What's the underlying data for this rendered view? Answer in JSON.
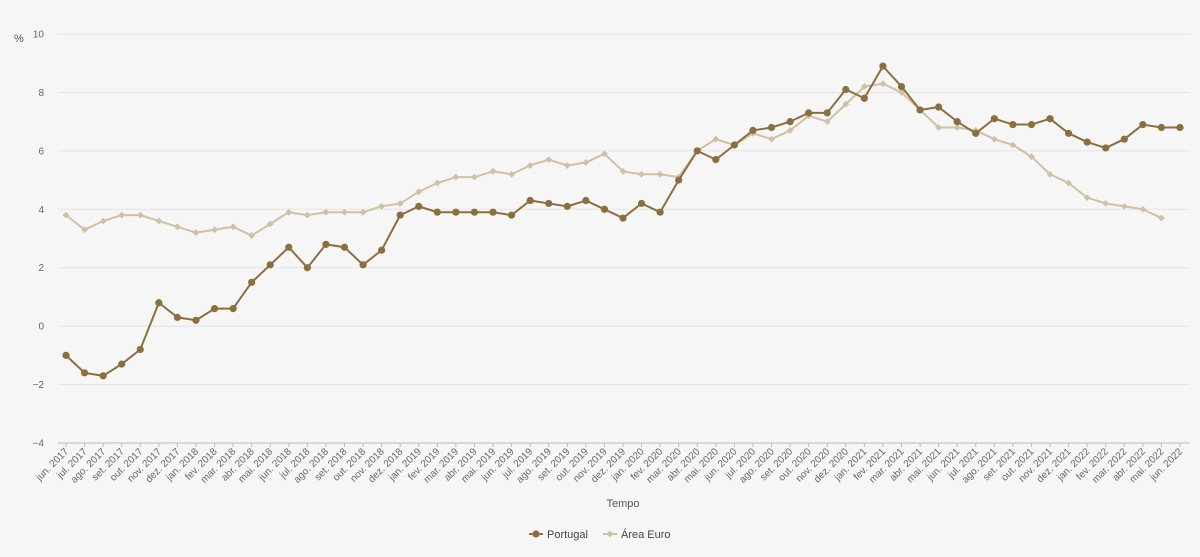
{
  "chart_data": {
    "type": "line",
    "title": "",
    "xlabel": "Tempo",
    "ylabel": "%",
    "ylim": [
      -4,
      10
    ],
    "yticks": [
      -4,
      -2,
      0,
      2,
      4,
      6,
      8,
      10
    ],
    "ytick_labels": [
      "−4",
      "−2",
      "0",
      "2",
      "4",
      "6",
      "8",
      "10"
    ],
    "grid": true,
    "legend_position": "bottom-center",
    "categories": [
      "jun. 2017",
      "jul. 2017",
      "ago. 2017",
      "set. 2017",
      "out. 2017",
      "nov. 2017",
      "dez. 2017",
      "jan. 2018",
      "fev. 2018",
      "mar. 2018",
      "abr. 2018",
      "mai. 2018",
      "jun. 2018",
      "jul. 2018",
      "ago. 2018",
      "set. 2018",
      "out. 2018",
      "nov. 2018",
      "dez. 2018",
      "jan. 2019",
      "fev. 2019",
      "mar. 2019",
      "abr. 2019",
      "mai. 2019",
      "jun. 2019",
      "jul. 2019",
      "ago. 2019",
      "set. 2019",
      "out. 2019",
      "nov. 2019",
      "dez. 2019",
      "jan. 2020",
      "fev. 2020",
      "mar. 2020",
      "abr. 2020",
      "mai. 2020",
      "jun. 2020",
      "jul. 2020",
      "ago. 2020",
      "set. 2020",
      "out. 2020",
      "nov. 2020",
      "dez. 2020",
      "jan. 2021",
      "fev. 2021",
      "mar. 2021",
      "abr. 2021",
      "mai. 2021",
      "jun. 2021",
      "jul. 2021",
      "ago. 2021",
      "set. 2021",
      "out. 2021",
      "nov. 2021",
      "dez. 2021",
      "jan. 2022",
      "fev. 2022",
      "mar. 2022",
      "abr. 2022",
      "mai. 2022",
      "jun. 2022"
    ],
    "series": [
      {
        "name": "Portugal",
        "color": "#8b6f3e",
        "marker": "circle",
        "values": [
          -1.0,
          -1.6,
          -1.7,
          -1.3,
          -0.8,
          0.8,
          0.3,
          0.2,
          0.6,
          0.6,
          1.5,
          2.1,
          2.7,
          2.0,
          2.8,
          2.7,
          2.1,
          2.6,
          3.8,
          4.1,
          3.9,
          3.9,
          3.9,
          3.9,
          3.8,
          4.3,
          4.2,
          4.1,
          4.3,
          4.0,
          3.7,
          4.2,
          3.9,
          5.0,
          6.0,
          5.7,
          6.2,
          6.7,
          6.8,
          7.0,
          7.3,
          7.3,
          8.1,
          7.8,
          8.9,
          8.2,
          7.4,
          7.5,
          7.0,
          6.6,
          7.1,
          6.9,
          6.9,
          7.1,
          6.6,
          6.3,
          6.1,
          6.4,
          6.9,
          6.8,
          6.8
        ]
      },
      {
        "name": "Área Euro",
        "color": "#cdc2a6",
        "marker": "diamond",
        "values": [
          3.8,
          3.3,
          3.6,
          3.8,
          3.8,
          3.6,
          3.4,
          3.2,
          3.3,
          3.4,
          3.1,
          3.5,
          3.9,
          3.8,
          3.9,
          3.9,
          3.9,
          4.1,
          4.2,
          4.6,
          4.9,
          5.1,
          5.1,
          5.3,
          5.2,
          5.5,
          5.7,
          5.5,
          5.6,
          5.9,
          5.3,
          5.2,
          5.2,
          5.1,
          6.0,
          6.4,
          6.2,
          6.6,
          6.4,
          6.7,
          7.2,
          7.0,
          7.6,
          8.2,
          8.3,
          8.0,
          7.4,
          6.8,
          6.8,
          6.7,
          6.4,
          6.2,
          5.8,
          5.2,
          4.9,
          4.4,
          4.2,
          4.1,
          4.0,
          3.7,
          null
        ]
      }
    ]
  }
}
